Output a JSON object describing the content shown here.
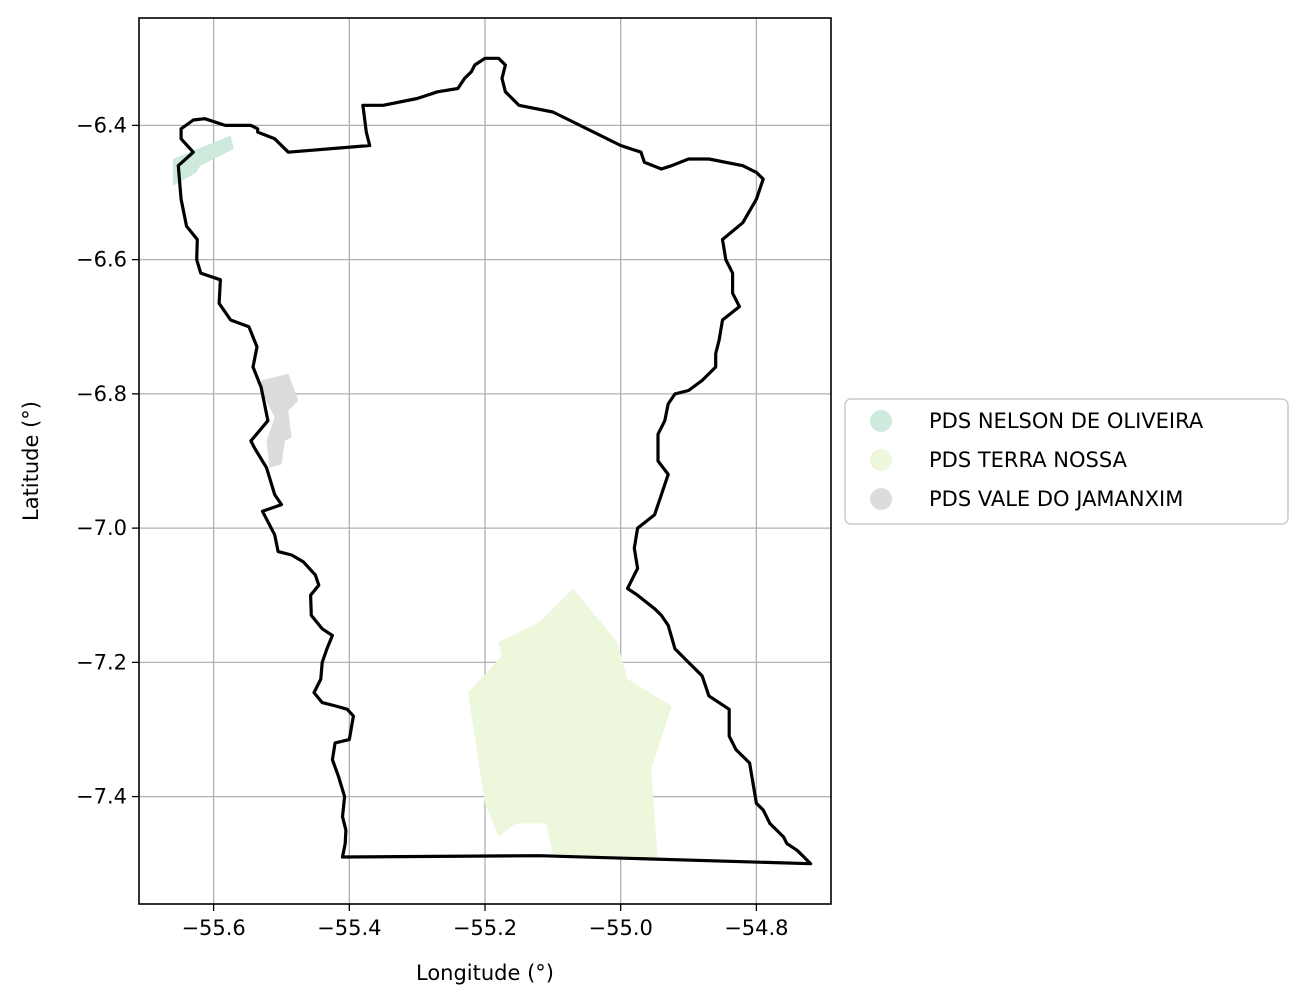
{
  "chart_data": {
    "type": "map",
    "xlabel": "Longitude (°)",
    "ylabel": "Latitude (°)",
    "xlim": [
      -55.71,
      -54.69
    ],
    "ylim": [
      -7.56,
      -6.24
    ],
    "xticks": [
      -55.6,
      -55.4,
      -55.2,
      -55.0,
      -54.8
    ],
    "xtick_labels": [
      "−55.6",
      "−55.4",
      "−55.2",
      "−55.0",
      "−54.8"
    ],
    "yticks": [
      -6.4,
      -6.6,
      -6.8,
      -7.0,
      -7.2,
      -7.4
    ],
    "ytick_labels": [
      "−6.4",
      "−6.6",
      "−6.8",
      "−7.0",
      "−7.2",
      "−7.4"
    ],
    "grid": true,
    "legend_position": "center-right outside",
    "boundary": {
      "color": "#000000",
      "coords": [
        [
          -55.41,
          -7.49
        ],
        [
          -55.406,
          -7.47
        ],
        [
          -55.405,
          -7.45
        ],
        [
          -55.41,
          -7.43
        ],
        [
          -55.407,
          -7.4
        ],
        [
          -55.416,
          -7.37
        ],
        [
          -55.425,
          -7.345
        ],
        [
          -55.421,
          -7.32
        ],
        [
          -55.4,
          -7.315
        ],
        [
          -55.394,
          -7.28
        ],
        [
          -55.403,
          -7.27
        ],
        [
          -55.42,
          -7.265
        ],
        [
          -55.44,
          -7.26
        ],
        [
          -55.452,
          -7.245
        ],
        [
          -55.442,
          -7.225
        ],
        [
          -55.44,
          -7.2
        ],
        [
          -55.433,
          -7.18
        ],
        [
          -55.425,
          -7.16
        ],
        [
          -55.44,
          -7.15
        ],
        [
          -55.456,
          -7.13
        ],
        [
          -55.457,
          -7.1
        ],
        [
          -55.445,
          -7.085
        ],
        [
          -55.45,
          -7.07
        ],
        [
          -55.468,
          -7.05
        ],
        [
          -55.485,
          -7.04
        ],
        [
          -55.505,
          -7.035
        ],
        [
          -55.51,
          -7.01
        ],
        [
          -55.528,
          -6.975
        ],
        [
          -55.5,
          -6.965
        ],
        [
          -55.51,
          -6.95
        ],
        [
          -55.522,
          -6.91
        ],
        [
          -55.54,
          -6.88
        ],
        [
          -55.545,
          -6.87
        ],
        [
          -55.52,
          -6.84
        ],
        [
          -55.53,
          -6.79
        ],
        [
          -55.542,
          -6.76
        ],
        [
          -55.536,
          -6.73
        ],
        [
          -55.548,
          -6.7
        ],
        [
          -55.575,
          -6.69
        ],
        [
          -55.592,
          -6.665
        ],
        [
          -55.59,
          -6.63
        ],
        [
          -55.619,
          -6.62
        ],
        [
          -55.625,
          -6.6
        ],
        [
          -55.624,
          -6.57
        ],
        [
          -55.64,
          -6.55
        ],
        [
          -55.648,
          -6.51
        ],
        [
          -55.652,
          -6.46
        ],
        [
          -55.63,
          -6.44
        ],
        [
          -55.648,
          -6.42
        ],
        [
          -55.648,
          -6.405
        ],
        [
          -55.63,
          -6.392
        ],
        [
          -55.613,
          -6.39
        ],
        [
          -55.583,
          -6.4
        ],
        [
          -55.56,
          -6.4
        ],
        [
          -55.545,
          -6.4
        ],
        [
          -55.535,
          -6.405
        ],
        [
          -55.535,
          -6.41
        ],
        [
          -55.51,
          -6.42
        ],
        [
          -55.49,
          -6.44
        ],
        [
          -55.37,
          -6.43
        ],
        [
          -55.375,
          -6.41
        ],
        [
          -55.38,
          -6.37
        ],
        [
          -55.35,
          -6.37
        ],
        [
          -55.3,
          -6.36
        ],
        [
          -55.27,
          -6.35
        ],
        [
          -55.24,
          -6.345
        ],
        [
          -55.23,
          -6.33
        ],
        [
          -55.22,
          -6.32
        ],
        [
          -55.215,
          -6.31
        ],
        [
          -55.2,
          -6.3
        ],
        [
          -55.19,
          -6.3
        ],
        [
          -55.18,
          -6.3
        ],
        [
          -55.17,
          -6.31
        ],
        [
          -55.175,
          -6.33
        ],
        [
          -55.17,
          -6.35
        ],
        [
          -55.15,
          -6.37
        ],
        [
          -55.1,
          -6.38
        ],
        [
          -55.07,
          -6.395
        ],
        [
          -55.0,
          -6.43
        ],
        [
          -54.97,
          -6.44
        ],
        [
          -54.965,
          -6.455
        ],
        [
          -54.94,
          -6.465
        ],
        [
          -54.925,
          -6.46
        ],
        [
          -54.9,
          -6.45
        ],
        [
          -54.87,
          -6.45
        ],
        [
          -54.82,
          -6.46
        ],
        [
          -54.8,
          -6.47
        ],
        [
          -54.79,
          -6.48
        ],
        [
          -54.8,
          -6.51
        ],
        [
          -54.82,
          -6.545
        ],
        [
          -54.85,
          -6.57
        ],
        [
          -54.845,
          -6.6
        ],
        [
          -54.835,
          -6.62
        ],
        [
          -54.835,
          -6.65
        ],
        [
          -54.825,
          -6.67
        ],
        [
          -54.85,
          -6.69
        ],
        [
          -54.855,
          -6.72
        ],
        [
          -54.86,
          -6.74
        ],
        [
          -54.86,
          -6.76
        ],
        [
          -54.88,
          -6.78
        ],
        [
          -54.9,
          -6.795
        ],
        [
          -54.92,
          -6.8
        ],
        [
          -54.93,
          -6.815
        ],
        [
          -54.935,
          -6.84
        ],
        [
          -54.945,
          -6.86
        ],
        [
          -54.945,
          -6.9
        ],
        [
          -54.93,
          -6.92
        ],
        [
          -54.94,
          -6.95
        ],
        [
          -54.95,
          -6.98
        ],
        [
          -54.975,
          -7.0
        ],
        [
          -54.98,
          -7.03
        ],
        [
          -54.975,
          -7.06
        ],
        [
          -54.99,
          -7.09
        ],
        [
          -54.975,
          -7.1
        ],
        [
          -54.95,
          -7.12
        ],
        [
          -54.94,
          -7.13
        ],
        [
          -54.93,
          -7.145
        ],
        [
          -54.92,
          -7.18
        ],
        [
          -54.9,
          -7.2
        ],
        [
          -54.88,
          -7.22
        ],
        [
          -54.87,
          -7.25
        ],
        [
          -54.84,
          -7.27
        ],
        [
          -54.84,
          -7.31
        ],
        [
          -54.83,
          -7.33
        ],
        [
          -54.81,
          -7.35
        ],
        [
          -54.805,
          -7.38
        ],
        [
          -54.8,
          -7.41
        ],
        [
          -54.79,
          -7.42
        ],
        [
          -54.78,
          -7.44
        ],
        [
          -54.76,
          -7.46
        ],
        [
          -54.755,
          -7.47
        ],
        [
          -54.74,
          -7.48
        ],
        [
          -54.73,
          -7.49
        ],
        [
          -54.72,
          -7.5
        ],
        [
          -55.12,
          -7.488
        ],
        [
          -55.41,
          -7.49
        ]
      ]
    },
    "series": [
      {
        "name": "PDS NELSON DE OLIVEIRA",
        "color": "#cdeadc",
        "polygons": [
          [
            [
              -55.66,
              -6.45
            ],
            [
              -55.575,
              -6.415
            ],
            [
              -55.57,
              -6.435
            ],
            [
              -55.62,
              -6.46
            ],
            [
              -55.625,
              -6.47
            ],
            [
              -55.66,
              -6.49
            ]
          ]
        ]
      },
      {
        "name": "PDS TERRA NOSSA",
        "color": "#edf7dc",
        "polygons": [
          [
            [
              -55.225,
              -7.245
            ],
            [
              -55.175,
              -7.19
            ],
            [
              -55.18,
              -7.17
            ],
            [
              -55.12,
              -7.14
            ],
            [
              -55.07,
              -7.09
            ],
            [
              -55.005,
              -7.17
            ],
            [
              -54.99,
              -7.225
            ],
            [
              -54.925,
              -7.265
            ],
            [
              -54.955,
              -7.36
            ],
            [
              -54.945,
              -7.495
            ],
            [
              -55.08,
              -7.49
            ],
            [
              -55.1,
              -7.485
            ],
            [
              -55.11,
              -7.44
            ],
            [
              -55.155,
              -7.44
            ],
            [
              -55.18,
              -7.46
            ],
            [
              -55.2,
              -7.41
            ]
          ]
        ]
      },
      {
        "name": "PDS VALE DO JAMANXIM",
        "color": "#dcdcdc",
        "polygons": [
          [
            [
              -55.53,
              -6.78
            ],
            [
              -55.49,
              -6.77
            ],
            [
              -55.475,
              -6.81
            ],
            [
              -55.49,
              -6.825
            ],
            [
              -55.485,
              -6.865
            ],
            [
              -55.495,
              -6.87
            ],
            [
              -55.5,
              -6.905
            ],
            [
              -55.518,
              -6.91
            ],
            [
              -55.522,
              -6.87
            ],
            [
              -55.51,
              -6.835
            ],
            [
              -55.525,
              -6.805
            ]
          ]
        ]
      }
    ]
  }
}
